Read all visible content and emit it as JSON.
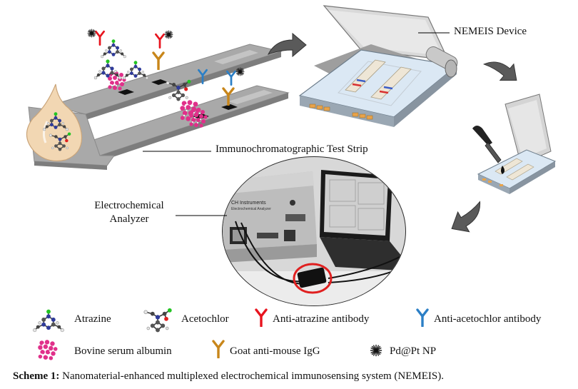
{
  "labels": {
    "device": "NEMEIS Device",
    "strip": "Immunochromatographic Test Strip",
    "analyzer_line1": "Electrochemical",
    "analyzer_line2": "Analyzer",
    "instrument_brand": "CH Instruments",
    "instrument_sub": "Electrochemical Analyzer"
  },
  "legend": [
    {
      "icon": "atrazine-molecule-icon",
      "text": "Atrazine"
    },
    {
      "icon": "acetochlor-molecule-icon",
      "text": "Acetochlor"
    },
    {
      "icon": "anti-atrazine-antibody-icon",
      "text": "Anti-atrazine antibody",
      "color": "#e8141e"
    },
    {
      "icon": "anti-acetochlor-antibody-icon",
      "text": "Anti-acetochlor antibody",
      "color": "#2b7fc6"
    },
    {
      "icon": "bsa-protein-icon",
      "text": "Bovine serum albumin",
      "color": "#e0308a"
    },
    {
      "icon": "goat-igg-icon",
      "text": "Goat anti-mouse IgG",
      "color": "#c8861a"
    },
    {
      "icon": "pd-pt-np-icon",
      "text": "Pd@Pt NP"
    }
  ],
  "caption": {
    "label": "Scheme 1:",
    "text": " Nanomaterial-enhanced multiplexed electrochemical immunosensing system (NEMEIS)."
  },
  "colors": {
    "strip": "#a9a9a9",
    "device_blue": "#dbe8f4",
    "arrow": "#555555",
    "highlight_ring": "#e02020"
  }
}
